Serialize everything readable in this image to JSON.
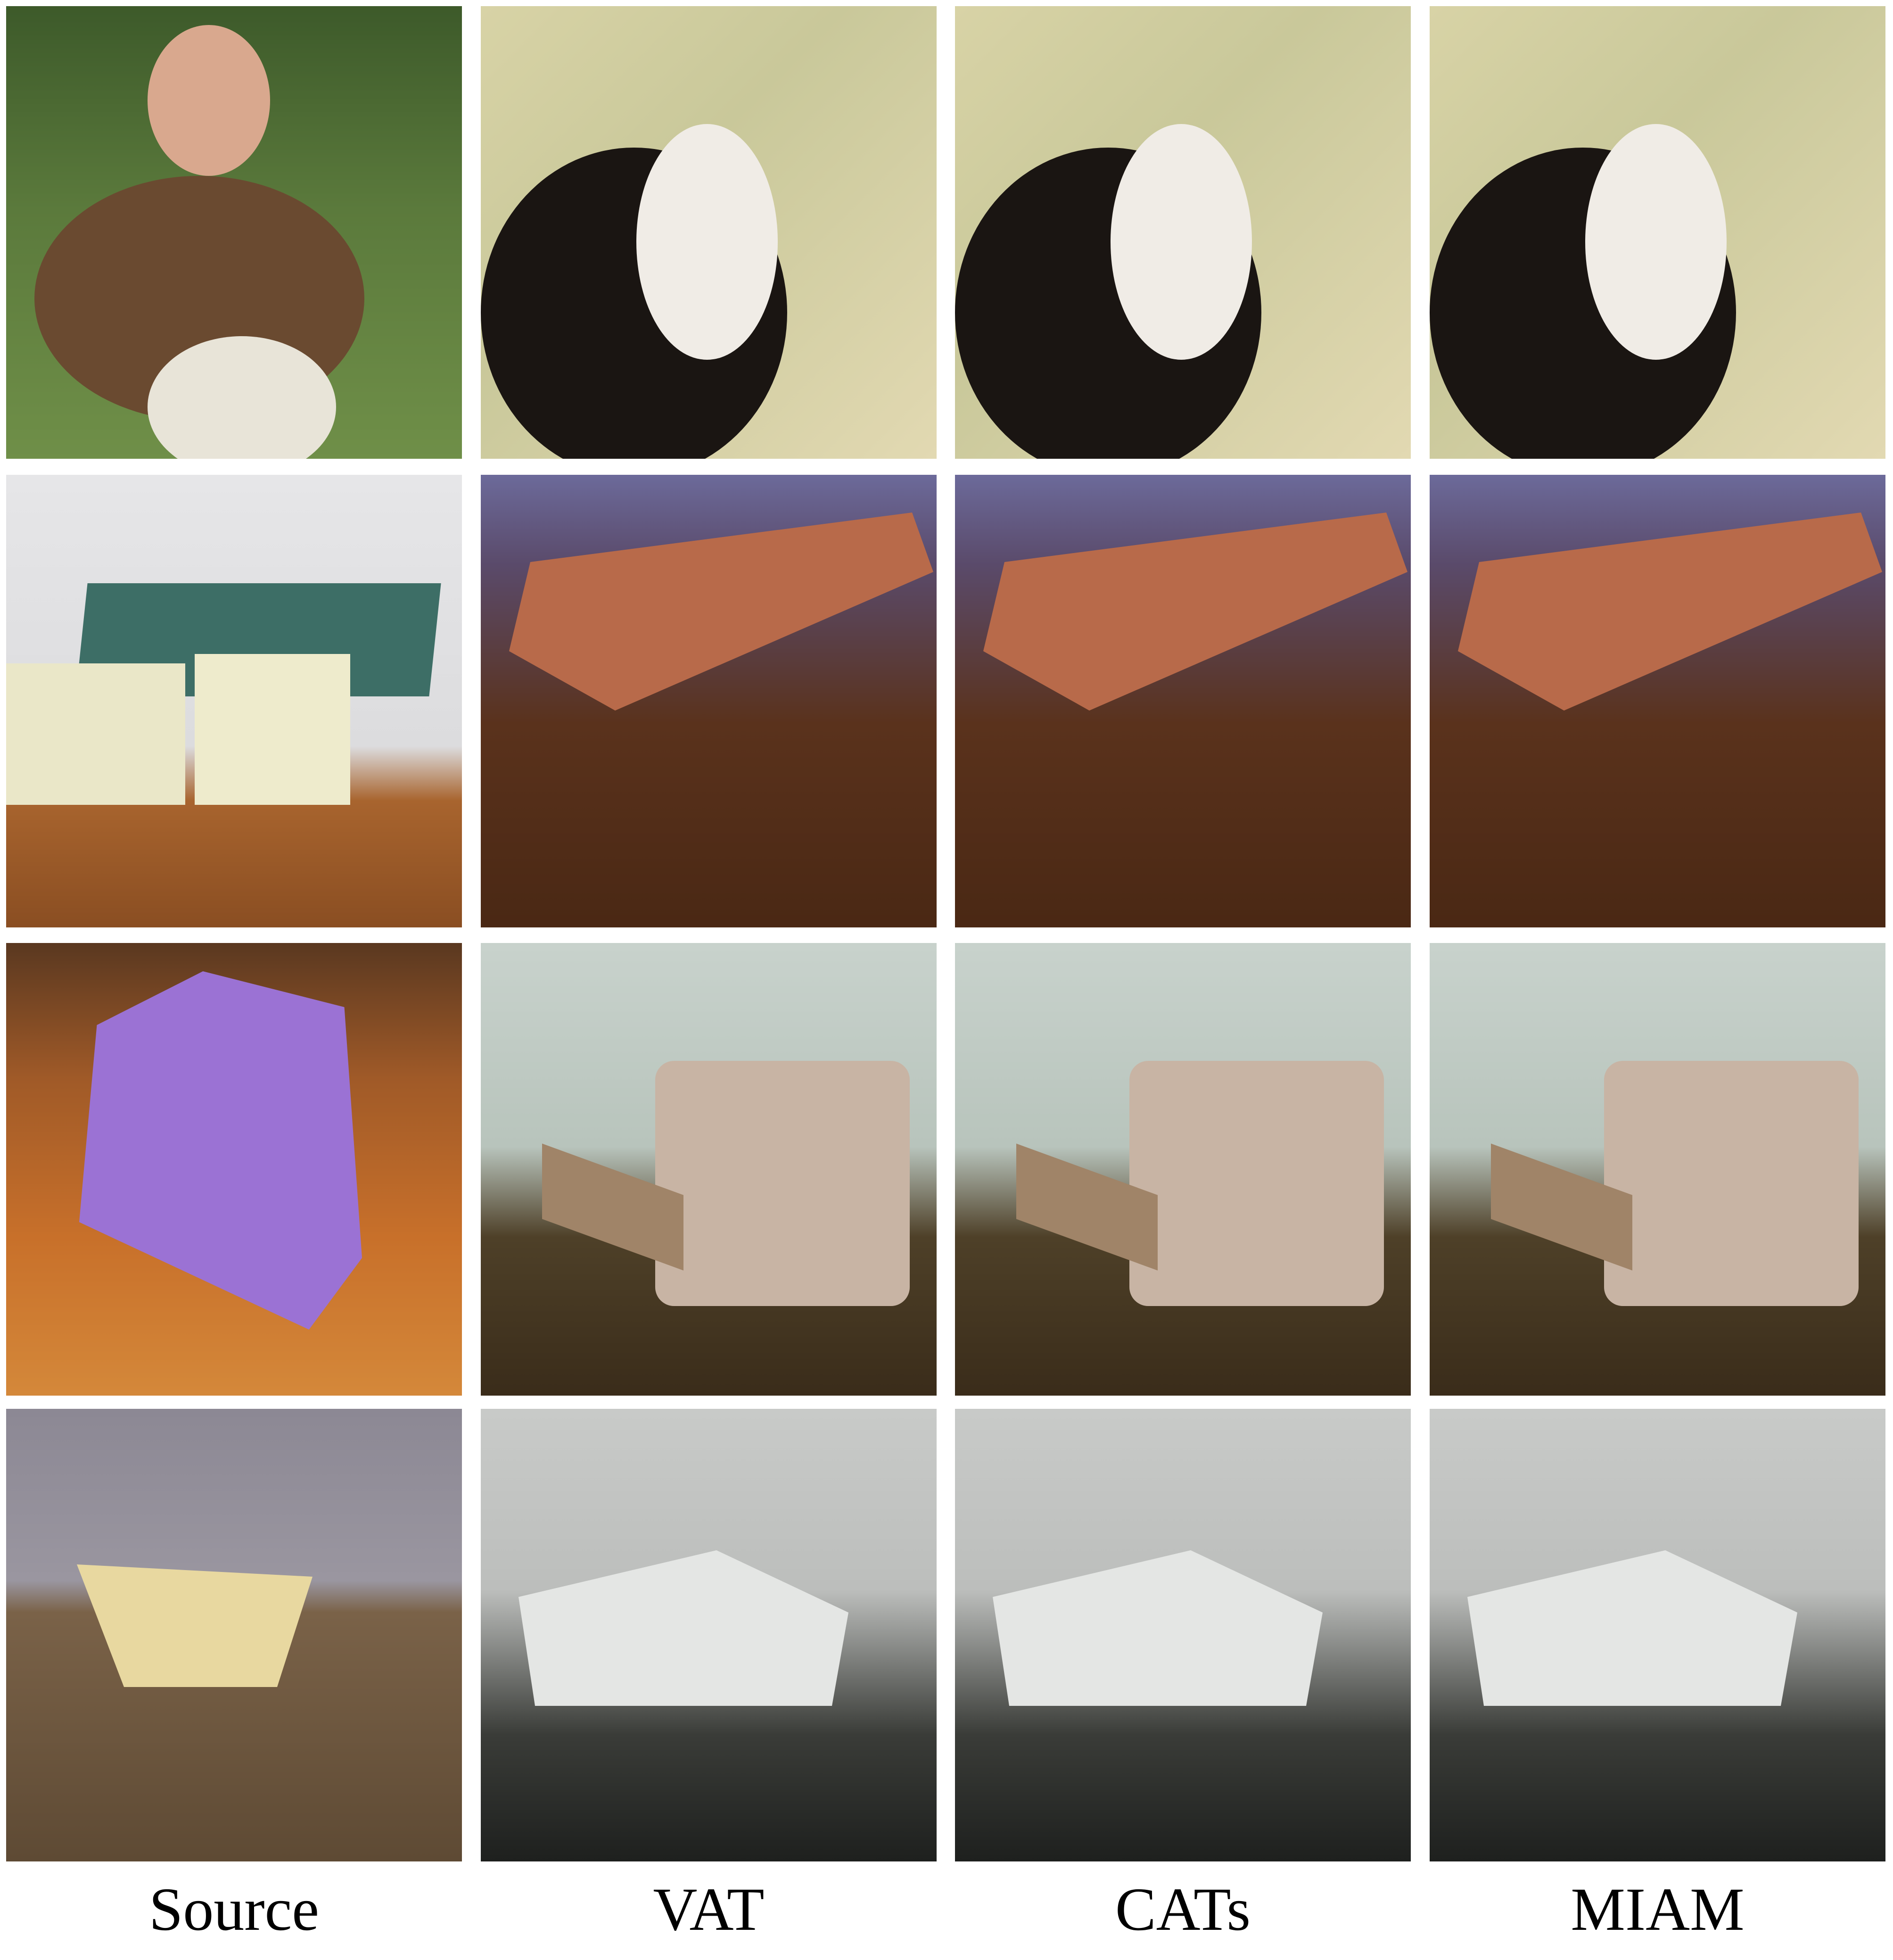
{
  "columns": [
    "Source",
    "VAT",
    "CATs",
    "MIAM"
  ]
}
